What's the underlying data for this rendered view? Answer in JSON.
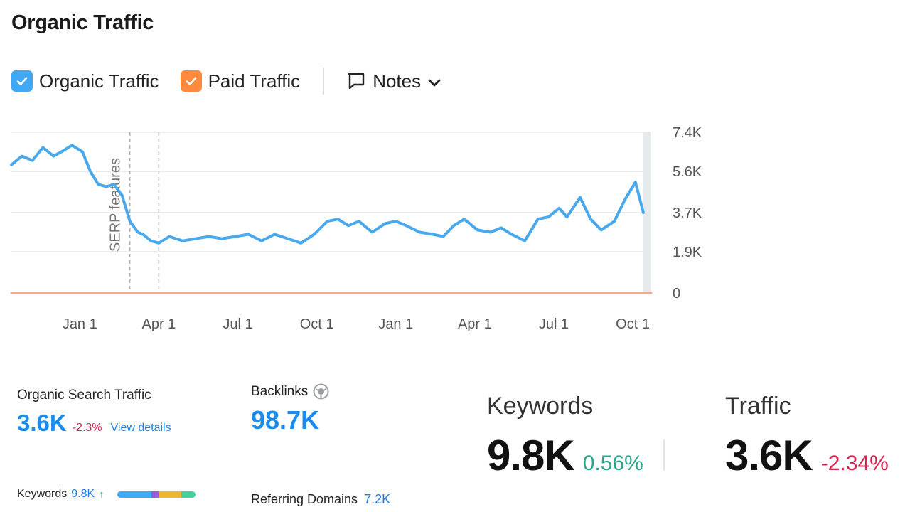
{
  "page": {
    "title": "Organic Traffic"
  },
  "legend": {
    "organic_label": "Organic Traffic",
    "paid_label": "Paid Traffic",
    "notes_label": "Notes",
    "organic_color": "#3fa9f5",
    "paid_color": "#ff8a3d"
  },
  "chart_data": {
    "type": "line",
    "title": "Organic Traffic",
    "x_tick_labels": [
      "Jan 1",
      "Apr 1",
      "Jul 1",
      "Oct 1",
      "Jan 1",
      "Apr 1",
      "Jul 1",
      "Oct 1"
    ],
    "y_tick_labels": [
      "0",
      "1.9K",
      "3.7K",
      "5.6K",
      "7.4K"
    ],
    "y_ticks": [
      0,
      1900,
      3700,
      5600,
      7400
    ],
    "ylim": [
      0,
      7400
    ],
    "x_unit": "months since start",
    "xlim": [
      0,
      24.3
    ],
    "x_ticks": [
      2.6,
      5.6,
      8.6,
      11.6,
      14.6,
      17.6,
      20.6,
      23.6
    ],
    "annotations": [
      {
        "x": 4.5,
        "label": "SERP features",
        "style": "dashed"
      },
      {
        "x": 5.6,
        "label": "",
        "style": "dashed"
      }
    ],
    "grid": true,
    "series": [
      {
        "name": "Organic Traffic",
        "color": "#4aa8ec",
        "x": [
          0,
          0.4,
          0.8,
          1.2,
          1.6,
          1.9,
          2.3,
          2.7,
          3.0,
          3.3,
          3.6,
          3.9,
          4.2,
          4.5,
          4.8,
          5.0,
          5.3,
          5.6,
          6.0,
          6.5,
          7.0,
          7.5,
          8.0,
          8.5,
          9.0,
          9.5,
          10.0,
          10.5,
          11.0,
          11.5,
          12.0,
          12.4,
          12.8,
          13.2,
          13.7,
          14.2,
          14.6,
          15.0,
          15.5,
          16.0,
          16.4,
          16.8,
          17.2,
          17.7,
          18.2,
          18.6,
          19.0,
          19.5,
          20.0,
          20.4,
          20.8,
          21.1,
          21.6,
          22.0,
          22.4,
          22.9,
          23.3,
          23.7,
          24.0
        ],
        "values": [
          5900,
          6300,
          6100,
          6700,
          6300,
          6500,
          6800,
          6500,
          5600,
          5000,
          4900,
          5000,
          4500,
          3300,
          2800,
          2700,
          2400,
          2300,
          2600,
          2400,
          2500,
          2600,
          2500,
          2600,
          2700,
          2400,
          2700,
          2500,
          2300,
          2700,
          3300,
          3400,
          3100,
          3300,
          2800,
          3200,
          3300,
          3100,
          2800,
          2700,
          2600,
          3100,
          3400,
          2900,
          2800,
          3000,
          2700,
          2400,
          3400,
          3500,
          3900,
          3500,
          4400,
          3400,
          2900,
          3300,
          4300,
          5100,
          3700
        ]
      },
      {
        "name": "Paid Traffic",
        "color": "#f4a88a",
        "x": [
          0,
          24.3
        ],
        "values": [
          0,
          0
        ]
      }
    ]
  },
  "metrics": {
    "organic_search_traffic_label": "Organic Search Traffic",
    "organic_search_traffic_value": "3.6K",
    "organic_search_traffic_delta": "-2.3%",
    "view_details_label": "View details",
    "backlinks_label": "Backlinks",
    "backlinks_value": "98.7K",
    "keywords_small_label": "Keywords",
    "keywords_small_value": "9.8K",
    "keywords_small_trend": "↑",
    "keyword_bar_colors": [
      "#3fa9f5",
      "#9b59e0",
      "#f2b632",
      "#43d19e"
    ],
    "referring_domains_label": "Referring Domains",
    "referring_domains_value": "7.2K",
    "keywords_label": "Keywords",
    "keywords_value": "9.8K",
    "keywords_delta": "0.56%",
    "traffic_label": "Traffic",
    "traffic_value": "3.6K",
    "traffic_delta": "-2.34%"
  }
}
